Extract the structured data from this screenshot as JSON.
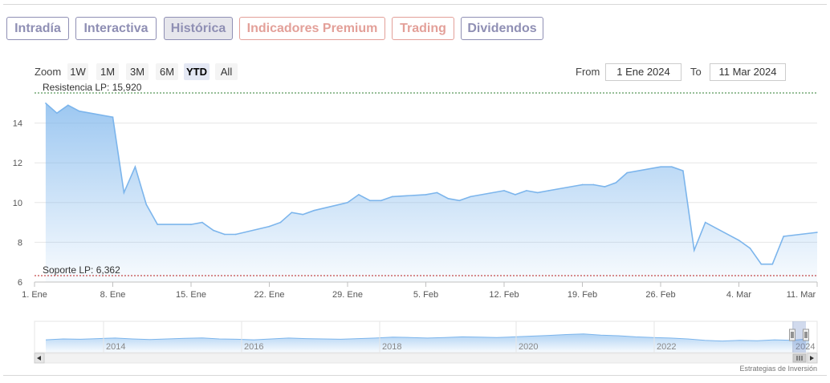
{
  "tabs": [
    {
      "label": "Intradía",
      "state": "normal"
    },
    {
      "label": "Interactiva",
      "state": "normal"
    },
    {
      "label": "Histórica",
      "state": "active"
    },
    {
      "label": "Indicadores Premium",
      "state": "premium"
    },
    {
      "label": "Trading",
      "state": "premium"
    },
    {
      "label": "Dividendos",
      "state": "normal"
    }
  ],
  "zoom": {
    "label": "Zoom",
    "buttons": [
      "1W",
      "1M",
      "3M",
      "6M",
      "YTD",
      "All"
    ],
    "selected": "YTD"
  },
  "range": {
    "from_label": "From",
    "from_value": "1 Ene 2024",
    "to_label": "To",
    "to_value": "11 Mar 2024"
  },
  "credit": "Estrategias de Inversión",
  "colors": {
    "tab_border": "#8f8fb4",
    "tab_premium": "#e3a099",
    "series_line": "#7cb5ec",
    "resistance_line": "#2e7d32",
    "support_line": "#b71c1c"
  },
  "chart_data": {
    "type": "area",
    "x_tick_labels": [
      "1. Ene",
      "8. Ene",
      "15. Ene",
      "22. Ene",
      "29. Ene",
      "5. Feb",
      "12. Feb",
      "19. Feb",
      "26. Feb",
      "4. Mar",
      "11. Mar"
    ],
    "y_tick_labels": [
      "6",
      "8",
      "10",
      "12",
      "14"
    ],
    "ylim": [
      6,
      16
    ],
    "grid": true,
    "series": [
      {
        "x": [
          "2024-01-02",
          "2024-01-03",
          "2024-01-04",
          "2024-01-05",
          "2024-01-08",
          "2024-01-09",
          "2024-01-10",
          "2024-01-11",
          "2024-01-12",
          "2024-01-15",
          "2024-01-16",
          "2024-01-17",
          "2024-01-18",
          "2024-01-19",
          "2024-01-22",
          "2024-01-23",
          "2024-01-24",
          "2024-01-25",
          "2024-01-26",
          "2024-01-29",
          "2024-01-30",
          "2024-01-31",
          "2024-02-01",
          "2024-02-02",
          "2024-02-05",
          "2024-02-06",
          "2024-02-07",
          "2024-02-08",
          "2024-02-09",
          "2024-02-12",
          "2024-02-13",
          "2024-02-14",
          "2024-02-15",
          "2024-02-16",
          "2024-02-19",
          "2024-02-20",
          "2024-02-21",
          "2024-02-22",
          "2024-02-23",
          "2024-02-26",
          "2024-02-27",
          "2024-02-28",
          "2024-02-29",
          "2024-03-01",
          "2024-03-04",
          "2024-03-05",
          "2024-03-06",
          "2024-03-07",
          "2024-03-08",
          "2024-03-11"
        ],
        "values": [
          15.0,
          14.5,
          14.9,
          14.6,
          14.3,
          10.5,
          11.8,
          9.9,
          8.9,
          8.9,
          9.0,
          8.6,
          8.4,
          8.4,
          8.8,
          9.0,
          9.5,
          9.4,
          9.6,
          10.0,
          10.4,
          10.1,
          10.1,
          10.3,
          10.4,
          10.5,
          10.2,
          10.1,
          10.3,
          10.6,
          10.4,
          10.6,
          10.5,
          10.6,
          10.9,
          10.9,
          10.8,
          11.0,
          11.5,
          11.8,
          11.8,
          11.6,
          7.6,
          9.0,
          8.1,
          7.7,
          6.9,
          6.9,
          8.3,
          8.5
        ]
      }
    ],
    "annotations": [
      {
        "label": "Resistencia LP: 15,920",
        "value": 15.92,
        "kind": "resistance"
      },
      {
        "label": "Soporte LP: 6,362",
        "value": 6.362,
        "kind": "support"
      }
    ],
    "navigator": {
      "x_tick_labels": [
        "2014",
        "2016",
        "2018",
        "2020",
        "2022",
        "2024"
      ]
    }
  }
}
